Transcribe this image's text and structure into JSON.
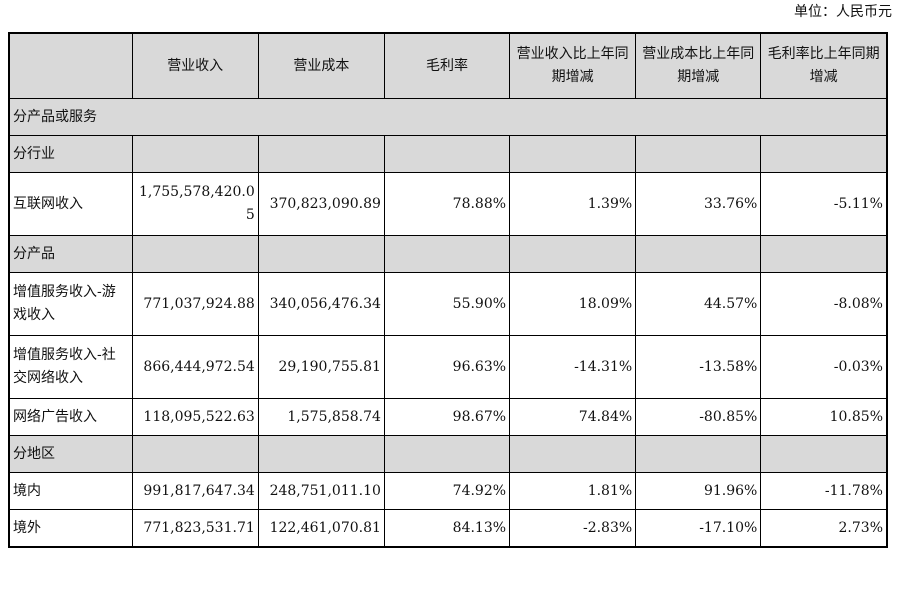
{
  "unit_label": "单位：人民币元",
  "headers": [
    "",
    "营业收入",
    "营业成本",
    "毛利率",
    "营业收入比上年同期增减",
    "营业成本比上年同期增减",
    "毛利率比上年同期增减"
  ],
  "sections": {
    "by_product_or_service": "分产品或服务",
    "by_industry": "分行业",
    "by_product": "分产品",
    "by_region": "分地区"
  },
  "industry_rows": [
    {
      "name": "互联网收入",
      "revenue": "1,755,578,420.05",
      "cost": "370,823,090.89",
      "margin": "78.88%",
      "rev_change": "1.39%",
      "cost_change": "33.76%",
      "margin_change": "-5.11%"
    }
  ],
  "product_rows": [
    {
      "name": "增值服务收入-游戏收入",
      "revenue": "771,037,924.88",
      "cost": "340,056,476.34",
      "margin": "55.90%",
      "rev_change": "18.09%",
      "cost_change": "44.57%",
      "margin_change": "-8.08%"
    },
    {
      "name": "增值服务收入-社交网络收入",
      "revenue": "866,444,972.54",
      "cost": "29,190,755.81",
      "margin": "96.63%",
      "rev_change": "-14.31%",
      "cost_change": "-13.58%",
      "margin_change": "-0.03%"
    },
    {
      "name": "网络广告收入",
      "revenue": "118,095,522.63",
      "cost": "1,575,858.74",
      "margin": "98.67%",
      "rev_change": "74.84%",
      "cost_change": "-80.85%",
      "margin_change": "10.85%"
    }
  ],
  "region_rows": [
    {
      "name": "境内",
      "revenue": "991,817,647.34",
      "cost": "248,751,011.10",
      "margin": "74.92%",
      "rev_change": "1.81%",
      "cost_change": "91.96%",
      "margin_change": "-11.78%"
    },
    {
      "name": "境外",
      "revenue": "771,823,531.71",
      "cost": "122,461,070.81",
      "margin": "84.13%",
      "rev_change": "-2.83%",
      "cost_change": "-17.10%",
      "margin_change": "2.73%"
    }
  ]
}
